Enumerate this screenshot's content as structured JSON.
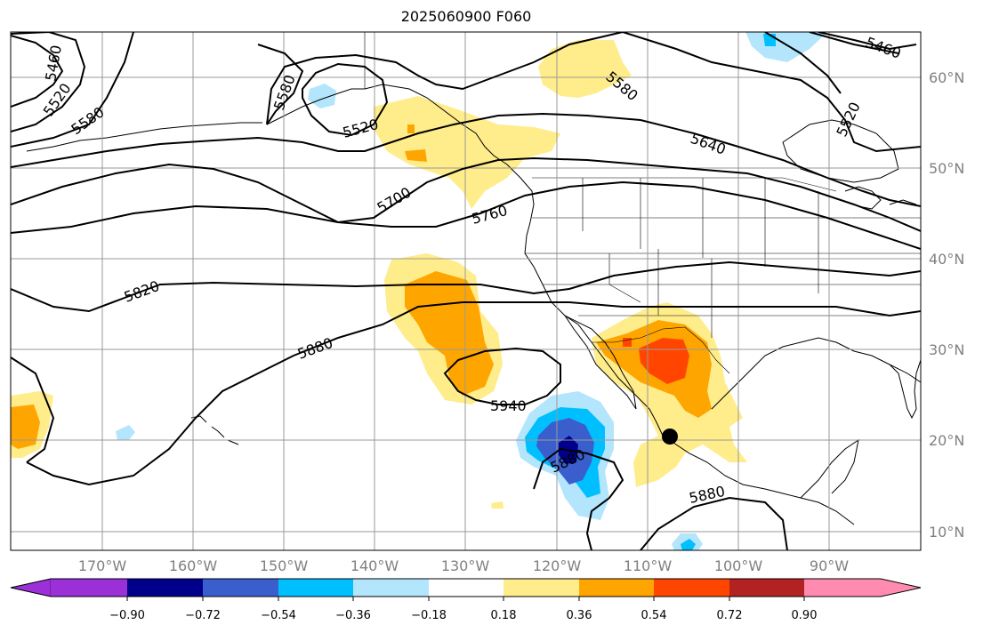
{
  "title": "2025060900 F060",
  "latitude_labels": [
    "60°N",
    "50°N",
    "40°N",
    "30°N",
    "20°N",
    "10°N"
  ],
  "longitude_labels": [
    "170°W",
    "160°W",
    "150°W",
    "140°W",
    "130°W",
    "120°W",
    "110°W",
    "100°W",
    "90°W"
  ],
  "contour_labels": [
    "5460",
    "5520",
    "5580",
    "5580",
    "5520",
    "5460",
    "5520",
    "5580",
    "5640",
    "5700",
    "5760",
    "5820",
    "5880",
    "5940",
    "5880",
    "5880"
  ],
  "colorbar": {
    "tick_labels": [
      "−0.90",
      "−0.72",
      "−0.54",
      "−0.36",
      "−0.18",
      "0.18",
      "0.36",
      "0.54",
      "0.72",
      "0.90"
    ],
    "colors": [
      "#9b30d8",
      "#00008b",
      "#3a5fcd",
      "#00bfff",
      "#b3e5fc",
      "#ffffff",
      "#ffec8b",
      "#ffa500",
      "#ff4500",
      "#b22222",
      "#ff8cb0"
    ]
  }
}
